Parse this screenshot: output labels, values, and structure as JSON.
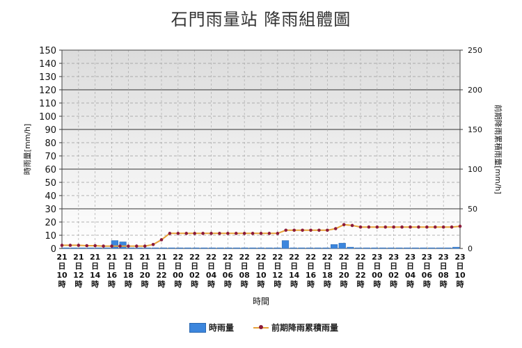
{
  "chart_data": {
    "type": "bar+line",
    "title": "石門雨量站 降雨組體圖",
    "xlabel": "時間",
    "ylabel_left": "時雨量[mm/h]",
    "ylabel_right": "前期降雨累積雨量[mm/h]",
    "ylim_left": [
      0,
      150
    ],
    "ylim_right": [
      0,
      250
    ],
    "yticks_left": [
      "0",
      "10",
      "20",
      "30",
      "40",
      "50",
      "60",
      "70",
      "80",
      "90",
      "100",
      "110",
      "120",
      "130",
      "140",
      "150"
    ],
    "yticks_right": [
      "0",
      "50",
      "100",
      "150",
      "200",
      "250"
    ],
    "x_tick_labels": [
      [
        "21",
        "日",
        "10",
        "時"
      ],
      [
        "21",
        "日",
        "12",
        "時"
      ],
      [
        "21",
        "日",
        "14",
        "時"
      ],
      [
        "21",
        "日",
        "16",
        "時"
      ],
      [
        "21",
        "日",
        "18",
        "時"
      ],
      [
        "21",
        "日",
        "20",
        "時"
      ],
      [
        "21",
        "日",
        "22",
        "時"
      ],
      [
        "22",
        "日",
        "00",
        "時"
      ],
      [
        "22",
        "日",
        "02",
        "時"
      ],
      [
        "22",
        "日",
        "04",
        "時"
      ],
      [
        "22",
        "日",
        "06",
        "時"
      ],
      [
        "22",
        "日",
        "08",
        "時"
      ],
      [
        "22",
        "日",
        "10",
        "時"
      ],
      [
        "22",
        "日",
        "12",
        "時"
      ],
      [
        "22",
        "日",
        "14",
        "時"
      ],
      [
        "22",
        "日",
        "16",
        "時"
      ],
      [
        "22",
        "日",
        "18",
        "時"
      ],
      [
        "22",
        "日",
        "20",
        "時"
      ],
      [
        "22",
        "日",
        "22",
        "時"
      ],
      [
        "23",
        "日",
        "00",
        "時"
      ],
      [
        "23",
        "日",
        "02",
        "時"
      ],
      [
        "23",
        "日",
        "04",
        "時"
      ],
      [
        "23",
        "日",
        "06",
        "時"
      ],
      [
        "23",
        "日",
        "08",
        "時"
      ],
      [
        "23",
        "日",
        "10",
        "時"
      ]
    ],
    "hourly_rain": [
      0.5,
      0,
      1,
      0,
      0.5,
      0,
      1,
      0,
      0,
      0,
      0.5,
      0,
      0.5,
      7,
      5.5,
      0.5,
      0.5,
      0.5,
      0.5,
      0.5,
      0.5,
      0.5,
      0.5,
      0.5,
      0.5,
      0.5,
      0.5,
      0.5,
      0.5,
      0.5,
      0.5,
      1.5,
      0,
      0,
      0,
      0,
      1.5,
      0.5,
      1,
      1,
      0.5,
      0.5,
      0.5,
      0.5,
      0.5,
      0.5,
      0.5,
      0.5,
      0.5
    ],
    "hourly_rain_compact": [
      0.5,
      0.5,
      0.5,
      0.5,
      0.5,
      0.5,
      6,
      5,
      0.5,
      0.5,
      0.5,
      0.5,
      0.5,
      0.5,
      0.5,
      0.5,
      0.5,
      0.5,
      0.5,
      0.5,
      0.5,
      0.5,
      0.5,
      0.5,
      0.5,
      0.5,
      0.5,
      6,
      0.5,
      0.5,
      0.5,
      0.5,
      0.5,
      3,
      4,
      1,
      0.5,
      0.5,
      0.5,
      0.5,
      0.5,
      0.5,
      0.5,
      0.5,
      0.5,
      0.5,
      0.5,
      0.5,
      1
    ],
    "series": [
      {
        "name": "時雨量",
        "kind": "bar",
        "axis": "left",
        "color": "#3c86dd"
      },
      {
        "name": "前期降雨累積雨量",
        "kind": "line",
        "axis": "right",
        "color": "#e8a33a",
        "marker_color": "#8b1a3a",
        "values": [
          4,
          4,
          4,
          3.5,
          3.5,
          3,
          3,
          3,
          3,
          3,
          3,
          5,
          11,
          19,
          19,
          19,
          19,
          19,
          19,
          19,
          19,
          19,
          19,
          19,
          19,
          19,
          19,
          23,
          23,
          23,
          23,
          23,
          23,
          25,
          30,
          29,
          27,
          27,
          27,
          27,
          27,
          27,
          27,
          27,
          27,
          27,
          27,
          27,
          28
        ]
      }
    ],
    "grid": true,
    "legend_position": "bottom"
  },
  "legend": {
    "bar": "時雨量",
    "line": "前期降雨累積雨量"
  }
}
